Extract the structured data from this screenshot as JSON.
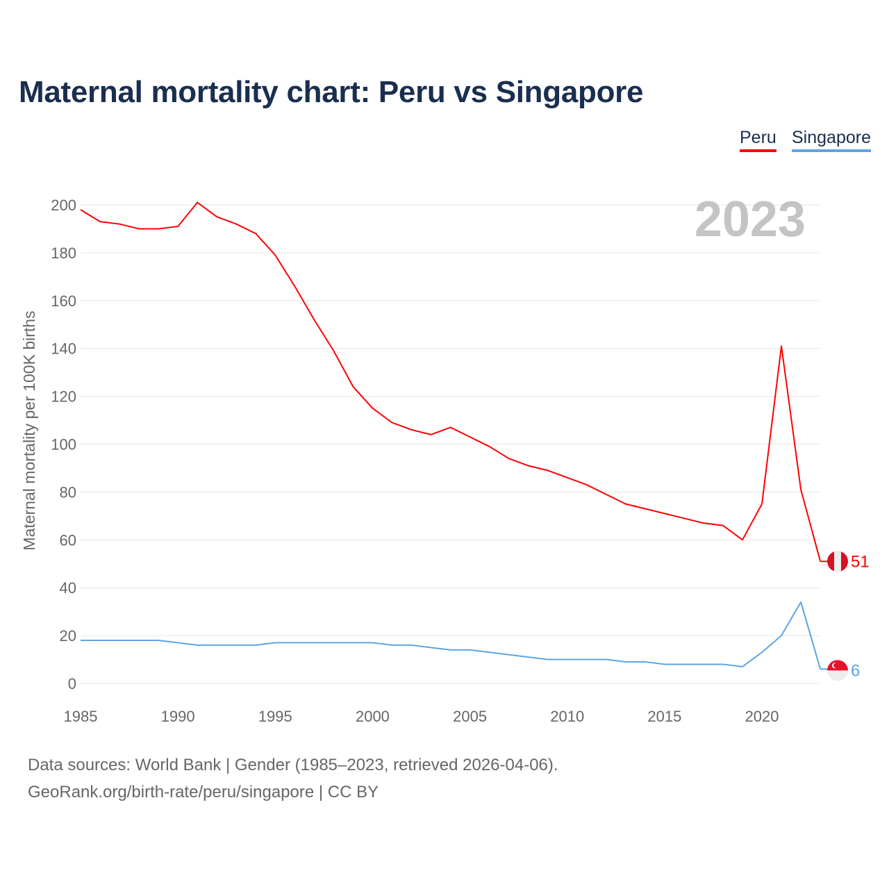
{
  "title": "Maternal mortality chart: Peru vs Singapore",
  "legend": [
    "Peru",
    "Singapore"
  ],
  "year_label": "2023",
  "footer": {
    "line1": "Data sources: World Bank | Gender (1985–2023, retrieved 2026-04-06).",
    "line2": "GeoRank.org/birth-rate/peru/singapore | CC BY"
  },
  "chart_data": {
    "type": "line",
    "title": "Maternal mortality chart: Peru vs Singapore",
    "xlabel": "",
    "ylabel": "Maternal mortality per 100K births",
    "xlim": [
      1985,
      2023
    ],
    "ylim": [
      0,
      200
    ],
    "xticks": [
      1985,
      1990,
      1995,
      2000,
      2005,
      2010,
      2015,
      2020
    ],
    "yticks": [
      0,
      20,
      40,
      60,
      80,
      100,
      120,
      140,
      160,
      180,
      200
    ],
    "grid": true,
    "legend_position": "top-right",
    "x": [
      1985,
      1986,
      1987,
      1988,
      1989,
      1990,
      1991,
      1992,
      1993,
      1994,
      1995,
      1996,
      1997,
      1998,
      1999,
      2000,
      2001,
      2002,
      2003,
      2004,
      2005,
      2006,
      2007,
      2008,
      2009,
      2010,
      2011,
      2012,
      2013,
      2014,
      2015,
      2016,
      2017,
      2018,
      2019,
      2020,
      2021,
      2022,
      2023
    ],
    "series": [
      {
        "name": "Peru",
        "color": "#ff0000",
        "end_label": "51",
        "values": [
          198,
          193,
          192,
          190,
          190,
          191,
          201,
          195,
          192,
          188,
          179,
          166,
          152,
          139,
          124,
          115,
          109,
          106,
          104,
          107,
          103,
          99,
          94,
          91,
          89,
          86,
          83,
          79,
          75,
          73,
          71,
          69,
          67,
          66,
          60,
          75,
          141,
          81,
          51
        ]
      },
      {
        "name": "Singapore",
        "color": "#5ba4e6",
        "end_label": "6",
        "values": [
          18,
          18,
          18,
          18,
          18,
          17,
          16,
          16,
          16,
          16,
          17,
          17,
          17,
          17,
          17,
          17,
          16,
          16,
          15,
          14,
          14,
          13,
          12,
          11,
          10,
          10,
          10,
          10,
          9,
          9,
          8,
          8,
          8,
          8,
          7,
          13,
          20,
          34,
          6
        ]
      }
    ]
  }
}
